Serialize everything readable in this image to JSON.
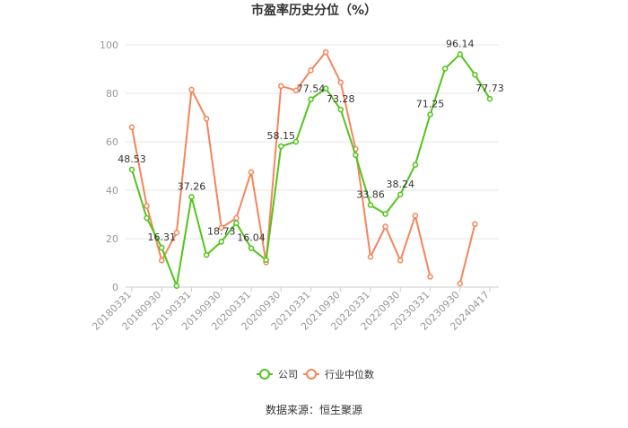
{
  "chart_data": {
    "type": "line",
    "title": "市盈率历史分位（%）",
    "ylim": [
      0,
      100
    ],
    "yticks": [
      0,
      20,
      40,
      60,
      80,
      100
    ],
    "x": [
      "20180331",
      "20180630",
      "20180930",
      "20181231",
      "20190331",
      "20190630",
      "20190930",
      "20191231",
      "20200331",
      "20200630",
      "20200930",
      "20201231",
      "20210331",
      "20210630",
      "20210930",
      "20211231",
      "20220331",
      "20220630",
      "20220930",
      "20221231",
      "20230331",
      "20230630",
      "20230930",
      "20231231",
      "20240417"
    ],
    "xtick_labels": [
      "20180331",
      "20180930",
      "20190331",
      "20190930",
      "20200331",
      "20200930",
      "20210331",
      "20210930",
      "20220331",
      "20220930",
      "20230331",
      "20230930",
      "20240417"
    ],
    "series": [
      {
        "name": "公司",
        "color": "#52c41a",
        "values": [
          48.53,
          28.5,
          16.31,
          0.5,
          37.26,
          13.3,
          18.73,
          26.5,
          16.04,
          11.2,
          58.15,
          60.0,
          77.54,
          82.0,
          73.28,
          54.5,
          33.86,
          30.2,
          38.24,
          50.5,
          71.25,
          90.2,
          96.14,
          87.7,
          77.73
        ],
        "point_labels": {
          "0": "48.53",
          "2": "16.31",
          "4": "37.26",
          "6": "18.73",
          "8": "16.04",
          "10": "58.15",
          "12": "77.54",
          "14": "73.28",
          "16": "33.86",
          "18": "38.24",
          "20": "71.25",
          "22": "96.14",
          "24": "77.73"
        }
      },
      {
        "name": "行业中位数",
        "color": "#f5855b",
        "values": [
          66.0,
          33.5,
          11.0,
          22.5,
          81.5,
          69.5,
          24.5,
          28.5,
          47.5,
          10.2,
          83.0,
          81.2,
          89.5,
          97.0,
          84.5,
          57.0,
          12.5,
          25.0,
          11.0,
          29.5,
          4.3,
          null,
          1.5,
          26.0,
          null
        ]
      }
    ],
    "grid": true,
    "legend_position": "bottom"
  },
  "legend": {
    "items": [
      {
        "label": "公司"
      },
      {
        "label": "行业中位数"
      }
    ]
  },
  "source": "数据来源：恒生聚源"
}
